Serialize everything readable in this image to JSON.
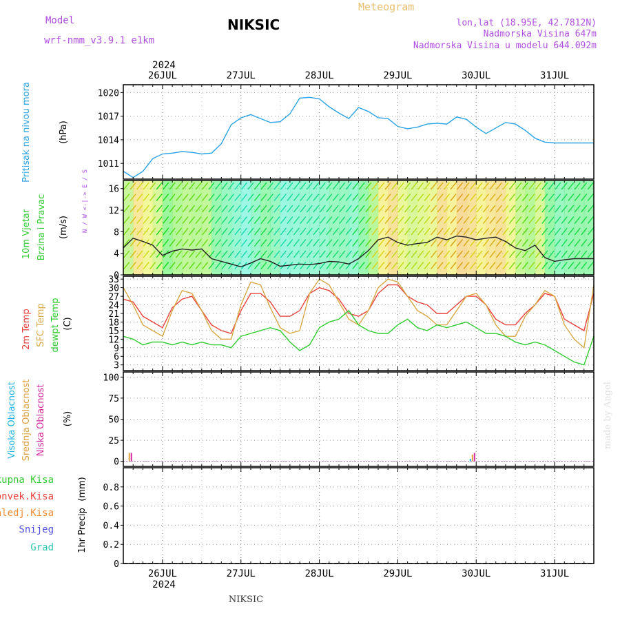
{
  "header": {
    "model_label": "Model",
    "model_name": "wrf-nmm_v3.9.1  e1km",
    "station": "NIKSIC",
    "product": "Meteogram",
    "lonlat": "lon,lat (18.95E, 42.7812N)",
    "elevation": "Nadmorska Visina 647m",
    "model_elevation": "Nadmorska Visina u modelu 644.092m",
    "year": "2024",
    "footer_station": "NIKSIC",
    "watermark": "made by Angel"
  },
  "colors": {
    "pressure": "#2aa3e6",
    "temp2m": "#e8413a",
    "sfc_temp": "#d9a845",
    "dewpoint": "#2ecc2e",
    "cloud_high": "#1fb3e6",
    "cloud_mid": "#e0a040",
    "cloud_low": "#d62aa0",
    "precip_total": "#2ecc2e",
    "precip_conv": "#e8413a",
    "precip_frozen": "#f08a30",
    "snow": "#5050e0",
    "hail": "#2ec8b0",
    "label_purple": "#b04ee0",
    "label_orange": "#e8c070"
  },
  "chart_data": {
    "x_axis": {
      "date_labels": [
        "26JUL",
        "27JUL",
        "28JUL",
        "29JUL",
        "30JUL",
        "31JUL"
      ],
      "start": "2024-07-25T12:00",
      "end": "2024-07-31T12:00"
    },
    "panels": [
      {
        "id": "pressure",
        "type": "line",
        "ylabel_title": "Pritisak na nivou mora",
        "unit": "(hPa)",
        "ylim": [
          1009,
          1021
        ],
        "yticks": [
          1011,
          1014,
          1017,
          1020
        ],
        "series": [
          {
            "x_hours": [
              0,
              3,
              6,
              9,
              12,
              15,
              18,
              21,
              24,
              27,
              30,
              33,
              36,
              39,
              42,
              45,
              48,
              51,
              54,
              57,
              60,
              63,
              66,
              69,
              72,
              75,
              78,
              81,
              84,
              87,
              90,
              93,
              96,
              99,
              102,
              105,
              108,
              111,
              114,
              117,
              120,
              123,
              126,
              129,
              132,
              135,
              138,
              141,
              144
            ],
            "values": [
              1010.0,
              1009.2,
              1010.0,
              1011.6,
              1012.2,
              1012.3,
              1012.5,
              1012.4,
              1012.2,
              1012.3,
              1013.5,
              1015.9,
              1016.8,
              1017.2,
              1016.7,
              1016.2,
              1016.3,
              1017.3,
              1019.3,
              1019.4,
              1019.2,
              1018.2,
              1017.4,
              1016.7,
              1018.1,
              1017.6,
              1016.8,
              1016.7,
              1015.7,
              1015.4,
              1015.6,
              1016.0,
              1016.1,
              1016.0,
              1016.9,
              1016.6,
              1015.6,
              1014.8,
              1015.5,
              1016.2,
              1016.0,
              1015.2,
              1014.2,
              1013.7,
              1013.6,
              1013.6,
              1013.6,
              1013.6,
              1013.6
            ]
          }
        ]
      },
      {
        "id": "wind",
        "type": "line",
        "ylabel_title": "10m Vjetar",
        "ylabel_sub": "Brzina i Pravac",
        "unit": "(m/s)",
        "compass": "N / W <-|-> E / S",
        "ylim": [
          0,
          17.5
        ],
        "yticks": [
          0,
          4,
          8,
          12,
          16
        ],
        "series": [
          {
            "name": "speed",
            "x_hours": [
              0,
              3,
              6,
              9,
              12,
              15,
              18,
              21,
              24,
              27,
              30,
              33,
              36,
              39,
              42,
              45,
              48,
              51,
              54,
              57,
              60,
              63,
              66,
              69,
              72,
              75,
              78,
              81,
              84,
              87,
              90,
              93,
              96,
              99,
              102,
              105,
              108,
              111,
              114,
              117,
              120,
              123,
              126,
              129,
              132,
              135,
              138,
              141,
              144
            ],
            "values": [
              5.0,
              6.8,
              6.2,
              5.5,
              3.6,
              4.4,
              4.8,
              4.6,
              4.8,
              3.0,
              2.5,
              2.0,
              1.5,
              2.2,
              3.0,
              2.5,
              1.6,
              1.8,
              2.0,
              1.9,
              2.1,
              2.5,
              2.4,
              2.0,
              3.0,
              4.5,
              6.5,
              7.0,
              6.0,
              5.5,
              5.8,
              6.0,
              7.0,
              6.5,
              7.2,
              7.0,
              6.5,
              6.8,
              7.0,
              6.2,
              5.0,
              4.5,
              5.5,
              3.2,
              2.5,
              2.8,
              3.0,
              3.0,
              3.0
            ]
          }
        ]
      },
      {
        "id": "temperature",
        "type": "line",
        "ylabel_title": "2m Temp",
        "ylabel_sub": "SFC Temp",
        "ylabel_third": "dewpt Temp",
        "unit": "(C)",
        "ylim": [
          1,
          34
        ],
        "yticks": [
          3,
          6,
          9,
          12,
          15,
          18,
          21,
          24,
          27,
          30,
          33
        ],
        "series": [
          {
            "name": "2m Temp",
            "x_hours": [
              0,
              3,
              6,
              9,
              12,
              15,
              18,
              21,
              24,
              27,
              30,
              33,
              36,
              39,
              42,
              45,
              48,
              51,
              54,
              57,
              60,
              63,
              66,
              69,
              72,
              75,
              78,
              81,
              84,
              87,
              90,
              93,
              96,
              99,
              102,
              105,
              108,
              111,
              114,
              117,
              120,
              123,
              126,
              129,
              132,
              135,
              138,
              141,
              144
            ],
            "values": [
              26,
              25,
              20,
              18,
              16,
              23,
              26,
              27,
              22,
              17,
              15,
              14,
              22,
              28,
              28,
              25,
              20,
              20,
              22,
              28,
              30,
              29,
              26,
              21,
              20,
              22,
              28,
              31,
              31,
              27,
              25,
              24,
              21,
              21,
              24,
              27,
              27,
              24,
              19,
              17,
              17,
              21,
              24,
              28,
              27,
              19,
              17,
              15,
              28
            ]
          },
          {
            "name": "SFC Temp",
            "x_hours": [
              0,
              3,
              6,
              9,
              12,
              15,
              18,
              21,
              24,
              27,
              30,
              33,
              36,
              39,
              42,
              45,
              48,
              51,
              54,
              57,
              60,
              63,
              66,
              69,
              72,
              75,
              78,
              81,
              84,
              87,
              90,
              93,
              96,
              99,
              102,
              105,
              108,
              111,
              114,
              117,
              120,
              123,
              126,
              129,
              132,
              135,
              138,
              141,
              144
            ],
            "values": [
              30,
              24,
              17,
              15,
              13,
              22,
              29,
              28,
              22,
              15,
              12,
              12,
              24,
              32,
              31,
              23,
              16,
              14,
              15,
              28,
              33,
              31,
              25,
              19,
              17,
              22,
              30,
              33,
              32,
              27,
              22,
              20,
              17,
              17,
              22,
              27,
              28,
              24,
              17,
              13,
              13,
              20,
              24,
              29,
              27,
              17,
              12,
              9,
              31
            ]
          },
          {
            "name": "dewpt Temp",
            "x_hours": [
              0,
              3,
              6,
              9,
              12,
              15,
              18,
              21,
              24,
              27,
              30,
              33,
              36,
              39,
              42,
              45,
              48,
              51,
              54,
              57,
              60,
              63,
              66,
              69,
              72,
              75,
              78,
              81,
              84,
              87,
              90,
              93,
              96,
              99,
              102,
              105,
              108,
              111,
              114,
              117,
              120,
              123,
              126,
              129,
              132,
              135,
              138,
              141,
              144
            ],
            "values": [
              13,
              12,
              10,
              11,
              11,
              10,
              11,
              10,
              11,
              10,
              10,
              9,
              13,
              14,
              15,
              16,
              15,
              11,
              8,
              10,
              16,
              18,
              19,
              22,
              17,
              15,
              14,
              14,
              17,
              19,
              16,
              15,
              17,
              16,
              17,
              18,
              16,
              14,
              14,
              13,
              11,
              10,
              11,
              10,
              8,
              6,
              4,
              3,
              13
            ]
          }
        ]
      },
      {
        "id": "clouds",
        "type": "bar",
        "ylabel_title": "Visoka Oblacnost",
        "ylabel_sub": "Srednja Oblacnost",
        "ylabel_third": "Niska Oblacnost",
        "unit": "(%)",
        "ylim": [
          -6,
          106
        ],
        "yticks": [
          0,
          25,
          50,
          75,
          100
        ],
        "series": [
          {
            "name": "Visoka Oblacnost",
            "x_hours": [
              1,
              106
            ],
            "values": [
              0,
              3
            ]
          },
          {
            "name": "Srednja Oblacnost",
            "x_hours": [
              1,
              106
            ],
            "values": [
              10,
              8
            ]
          },
          {
            "name": "Niska Oblacnost",
            "x_hours": [
              1,
              106
            ],
            "values": [
              10,
              10
            ]
          }
        ]
      },
      {
        "id": "precip",
        "type": "bar",
        "ylabel_title": "1hr Precip",
        "unit": "(mm)",
        "ylim": [
          0,
          1.0
        ],
        "yticks": [
          0,
          0.2,
          0.4,
          0.6,
          0.8
        ],
        "legend": [
          "Ukupna Kisa",
          "Konvek.Kisa",
          "Zaledj.Kisa",
          "Snijeg",
          "Grad"
        ],
        "series": [
          {
            "name": "Ukupna Kisa",
            "values": []
          }
        ]
      }
    ]
  }
}
